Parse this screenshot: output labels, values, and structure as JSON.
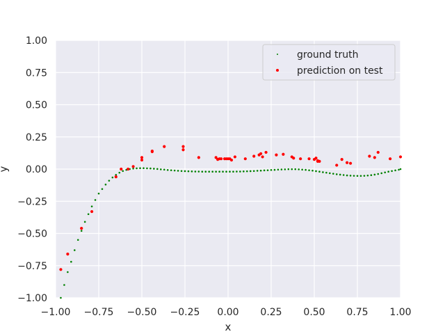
{
  "chart_data": {
    "type": "scatter",
    "title": "",
    "xlabel": "x",
    "ylabel": "y",
    "xlim": [
      -1.0,
      1.0
    ],
    "ylim": [
      -1.0,
      1.0
    ],
    "grid": true,
    "legend_position": "top-right",
    "x_ticks": [
      -1.0,
      -0.75,
      -0.5,
      -0.25,
      0.0,
      0.25,
      0.5,
      0.75,
      1.0
    ],
    "y_ticks": [
      -1.0,
      -0.75,
      -0.5,
      -0.25,
      0.0,
      0.25,
      0.5,
      0.75,
      1.0
    ],
    "x_tick_labels": [
      "−1.00",
      "−0.75",
      "−0.50",
      "−0.25",
      "0.00",
      "0.25",
      "0.50",
      "0.75",
      "1.00"
    ],
    "y_tick_labels": [
      "−1.00",
      "−0.75",
      "−0.50",
      "−0.25",
      "0.00",
      "0.25",
      "0.50",
      "0.75",
      "1.00"
    ],
    "series": [
      {
        "name": "ground truth",
        "color": "#008000",
        "marker": "small-dot",
        "x": [
          -0.97,
          -0.95,
          -0.93,
          -0.91,
          -0.89,
          -0.87,
          -0.85,
          -0.83,
          -0.81,
          -0.79,
          -0.77,
          -0.75,
          -0.73,
          -0.71,
          -0.69,
          -0.67,
          -0.65,
          -0.63,
          -0.61,
          -0.59,
          -0.57,
          -0.55,
          -0.53,
          -0.51,
          -0.49,
          -0.47,
          -0.45,
          -0.43,
          -0.41,
          -0.39,
          -0.37,
          -0.35,
          -0.33,
          -0.31,
          -0.29,
          -0.27,
          -0.25,
          -0.23,
          -0.21,
          -0.19,
          -0.17,
          -0.15,
          -0.13,
          -0.11,
          -0.09,
          -0.07,
          -0.05,
          -0.03,
          -0.01,
          0.01,
          0.03,
          0.05,
          0.07,
          0.09,
          0.11,
          0.13,
          0.15,
          0.17,
          0.19,
          0.21,
          0.23,
          0.25,
          0.27,
          0.29,
          0.31,
          0.33,
          0.35,
          0.37,
          0.39,
          0.41,
          0.43,
          0.45,
          0.47,
          0.49,
          0.51,
          0.53,
          0.55,
          0.57,
          0.59,
          0.61,
          0.63,
          0.65,
          0.67,
          0.69,
          0.71,
          0.73,
          0.75,
          0.77,
          0.79,
          0.81,
          0.83,
          0.85,
          0.87,
          0.89,
          0.91,
          0.93,
          0.95,
          0.97,
          0.99,
          1.0
        ],
        "y": [
          -1.0,
          -0.9,
          -0.8,
          -0.72,
          -0.63,
          -0.55,
          -0.48,
          -0.41,
          -0.35,
          -0.29,
          -0.24,
          -0.19,
          -0.155,
          -0.12,
          -0.09,
          -0.065,
          -0.045,
          -0.028,
          -0.015,
          -0.006,
          0.0,
          0.004,
          0.006,
          0.007,
          0.007,
          0.006,
          0.005,
          0.003,
          0.001,
          -0.002,
          -0.004,
          -0.007,
          -0.009,
          -0.011,
          -0.013,
          -0.015,
          -0.016,
          -0.017,
          -0.018,
          -0.019,
          -0.019,
          -0.02,
          -0.02,
          -0.02,
          -0.02,
          -0.02,
          -0.02,
          -0.02,
          -0.02,
          -0.02,
          -0.02,
          -0.019,
          -0.019,
          -0.018,
          -0.017,
          -0.016,
          -0.015,
          -0.013,
          -0.012,
          -0.01,
          -0.009,
          -0.007,
          -0.006,
          -0.004,
          -0.003,
          -0.002,
          -0.001,
          -0.001,
          -0.001,
          -0.002,
          -0.004,
          -0.006,
          -0.009,
          -0.012,
          -0.016,
          -0.02,
          -0.024,
          -0.028,
          -0.032,
          -0.036,
          -0.04,
          -0.043,
          -0.046,
          -0.049,
          -0.051,
          -0.052,
          -0.053,
          -0.053,
          -0.052,
          -0.05,
          -0.047,
          -0.043,
          -0.038,
          -0.032,
          -0.026,
          -0.02,
          -0.015,
          -0.01,
          -0.005,
          0.0
        ]
      },
      {
        "name": "prediction on test",
        "color": "#ff0000",
        "marker": "dot",
        "x": [
          -0.97,
          -0.93,
          -0.85,
          -0.79,
          -0.65,
          -0.62,
          -0.58,
          -0.55,
          -0.5,
          -0.5,
          -0.44,
          -0.44,
          -0.37,
          -0.26,
          -0.26,
          -0.17,
          -0.07,
          -0.06,
          -0.05,
          -0.04,
          -0.02,
          -0.01,
          0.0,
          0.01,
          0.02,
          0.04,
          0.1,
          0.15,
          0.18,
          0.19,
          0.2,
          0.22,
          0.28,
          0.32,
          0.37,
          0.38,
          0.42,
          0.47,
          0.5,
          0.51,
          0.52,
          0.52,
          0.53,
          0.63,
          0.66,
          0.69,
          0.71,
          0.82,
          0.85,
          0.87,
          0.94,
          1.0
        ],
        "y": [
          -0.78,
          -0.66,
          -0.46,
          -0.33,
          -0.06,
          0.0,
          0.0,
          0.02,
          0.07,
          0.09,
          0.14,
          0.135,
          0.175,
          0.15,
          0.175,
          0.09,
          0.09,
          0.075,
          0.08,
          0.08,
          0.08,
          0.08,
          0.08,
          0.08,
          0.07,
          0.095,
          0.08,
          0.1,
          0.11,
          0.12,
          0.095,
          0.13,
          0.11,
          0.115,
          0.095,
          0.085,
          0.08,
          0.08,
          0.075,
          0.085,
          0.065,
          0.06,
          0.06,
          0.03,
          0.075,
          0.05,
          0.045,
          0.1,
          0.09,
          0.13,
          0.08,
          0.095
        ]
      }
    ]
  }
}
